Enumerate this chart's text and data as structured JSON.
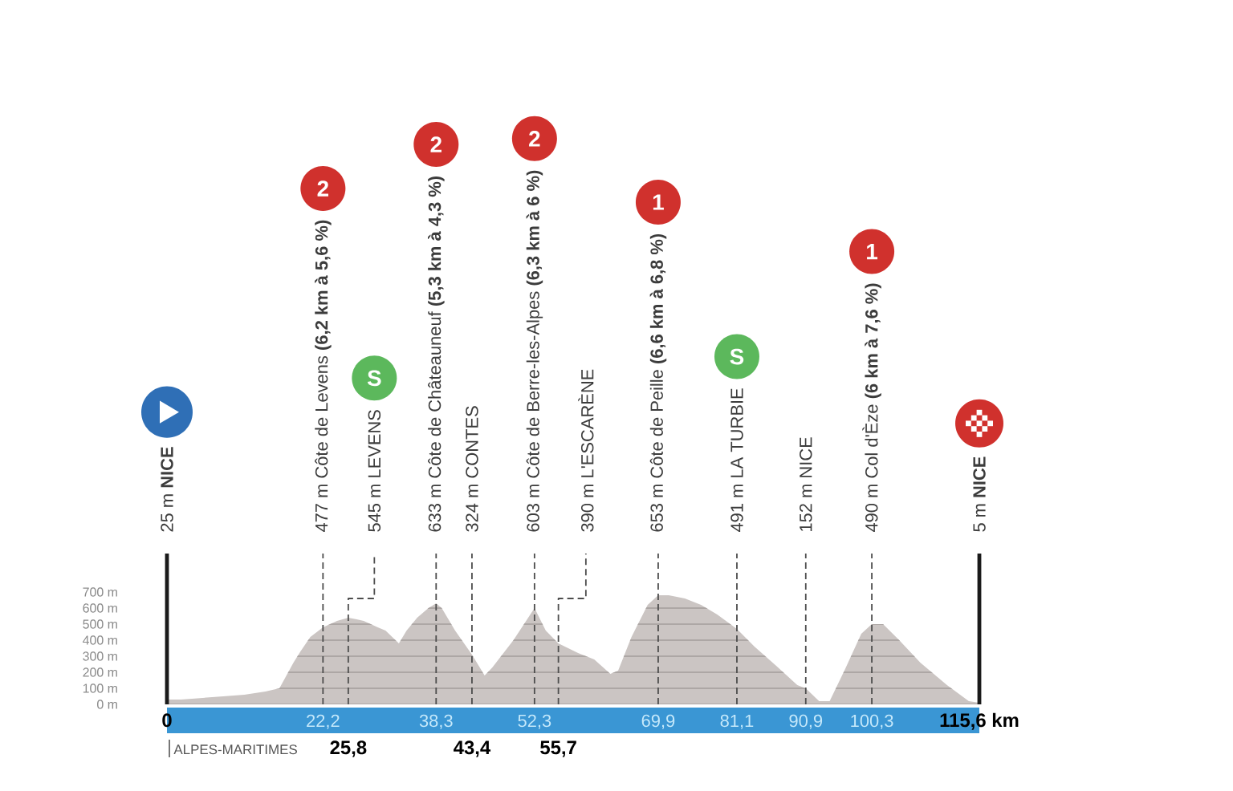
{
  "chart_data": {
    "type": "area",
    "x": [
      0,
      2,
      5,
      8,
      11,
      14,
      16,
      17,
      18,
      19,
      20.4,
      22.2,
      24.2,
      25.8,
      27,
      28,
      30,
      31.1,
      33,
      34.1,
      35.6,
      37.2,
      38.3,
      39.1,
      41,
      43.4,
      45.2,
      46.3,
      49.3,
      52.3,
      53.9,
      55.7,
      58.5,
      60.8,
      63.1,
      64.2,
      66.1,
      68.4,
      69.9,
      71.4,
      73.7,
      76,
      78.3,
      81.1,
      83.6,
      86.7,
      89.7,
      90.9,
      92.8,
      94.3,
      96.5,
      98.8,
      100.3,
      101.9,
      104.2,
      107.2,
      111,
      114.1,
      115.6
    ],
    "values": [
      30,
      30,
      40,
      50,
      60,
      80,
      100,
      180,
      260,
      330,
      420,
      480,
      520,
      540,
      530,
      520,
      480,
      460,
      380,
      460,
      540,
      600,
      630,
      600,
      460,
      310,
      180,
      230,
      400,
      600,
      460,
      380,
      320,
      280,
      190,
      210,
      420,
      620,
      680,
      680,
      660,
      620,
      560,
      470,
      360,
      240,
      120,
      100,
      20,
      20,
      220,
      440,
      500,
      500,
      400,
      260,
      120,
      20,
      10
    ],
    "color": "#cbc5c3",
    "xlim": [
      0,
      115.6
    ],
    "xticks": [
      0,
      {
        "value": 22.2,
        "label": "22,2"
      },
      {
        "value": 38.3,
        "label": "38,3"
      },
      {
        "value": 52.3,
        "label": "52,3"
      },
      {
        "value": 69.9,
        "label": "69,9"
      },
      {
        "value": 81.1,
        "label": "81,1"
      },
      {
        "value": 90.9,
        "label": "90,9"
      },
      {
        "value": 100.3,
        "label": "100,3"
      },
      {
        "value": 115.6,
        "label": "115,6 km"
      }
    ],
    "x2lim": [
      0,
      115.6
    ],
    "x2ticks": [
      {
        "value": 25.8,
        "label": "25,8"
      },
      {
        "value": 43.4,
        "label": "43,4"
      },
      {
        "value": 55.7,
        "label": "55,7"
      }
    ],
    "ylim": [
      0,
      700
    ],
    "yticks": [
      {
        "value": 0,
        "label": "0 m"
      },
      {
        "value": 100,
        "label": "100 m"
      },
      {
        "value": 200,
        "label": "200 m"
      },
      {
        "value": 300,
        "label": "300 m"
      },
      {
        "value": 400,
        "label": "400 m"
      },
      {
        "value": 500,
        "label": "500 m"
      },
      {
        "value": 600,
        "label": "600 m"
      },
      {
        "value": 700,
        "label": "700 m"
      }
    ],
    "grid": "y",
    "ref_lines": [
      {
        "axis": "x",
        "value": 0,
        "label": "25 m **NICE**",
        "line_style": "solid",
        "color": "#1a1a1a"
      },
      {
        "axis": "x",
        "value": 22.2,
        "label": "477 m Côte de Levens **(6,2 km à 5,6 %)**",
        "line_style": "dashed",
        "color": "#4d4d4d"
      },
      {
        "axis": "x",
        "value": 25.8,
        "label": "545 m LEVENS",
        "line_style": "dashed",
        "color": "#4d4d4d"
      },
      {
        "axis": "x",
        "value": 38.3,
        "label": "633 m Côte de Châteauneuf **(5,3 km à 4,3 %)**",
        "line_style": "dashed",
        "color": "#4d4d4d"
      },
      {
        "axis": "x",
        "value": 43.4,
        "label": "324 m CONTES",
        "line_style": "dashed",
        "color": "#4d4d4d"
      },
      {
        "axis": "x",
        "value": 52.3,
        "label": "603 m Côte de Berre-les-Alpes **(6,3 km à 6 %)**",
        "line_style": "dashed",
        "color": "#4d4d4d"
      },
      {
        "axis": "x",
        "value": 55.7,
        "label": "390 m L'ESCARÈNE",
        "line_style": "dashed",
        "color": "#4d4d4d"
      },
      {
        "axis": "x",
        "value": 69.9,
        "label": "653 m Côte de Peille **(6,6 km à 6,8 %)**",
        "line_style": "dashed",
        "color": "#4d4d4d"
      },
      {
        "axis": "x",
        "value": 81.1,
        "label": "491 m LA TURBIE",
        "line_style": "dashed",
        "color": "#4d4d4d"
      },
      {
        "axis": "x",
        "value": 90.9,
        "label": "152 m NICE",
        "line_style": "dashed",
        "color": "#4d4d4d"
      },
      {
        "axis": "x",
        "value": 100.3,
        "label": "490 m Col d'Èze **(6 km à 7,6 %)**",
        "line_style": "dashed",
        "color": "#4d4d4d"
      },
      {
        "axis": "x",
        "value": 115.6,
        "label": "5 m **NICE**",
        "line_style": "solid",
        "color": "#1a1a1a"
      }
    ],
    "annotations": [
      "2",
      "S",
      "2",
      "2",
      "1",
      "S",
      "1",
      "ALPES-MARITIMES"
    ]
  }
}
